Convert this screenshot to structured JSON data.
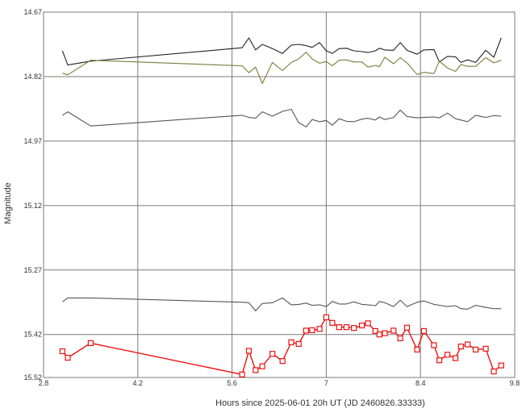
{
  "chart_data": {
    "type": "line",
    "title": "",
    "xlabel": "Hours since 2025-06-01 20h UT (JD 2460826.33333)",
    "ylabel": "Magnitude",
    "xlim": [
      2.8,
      9.8
    ],
    "ylim": [
      14.67,
      15.52
    ],
    "y_inverted": true,
    "x_ticks": [
      "2.8",
      "4.2",
      "5.6",
      "7",
      "8.4",
      "9.8"
    ],
    "y_ticks": [
      "14.67",
      "14.82",
      "14.97",
      "15.12",
      "15.27",
      "15.42",
      "15.52"
    ],
    "grid": true,
    "series": [
      {
        "color": "#222222",
        "marker": "none",
        "x": [
          3.08,
          3.16,
          3.5,
          5.75,
          5.85,
          5.95,
          6.05,
          6.2,
          6.35,
          6.48,
          6.59,
          6.7,
          6.79,
          6.9,
          7.0,
          7.09,
          7.19,
          7.3,
          7.41,
          7.53,
          7.62,
          7.73,
          7.79,
          7.87,
          8.0,
          8.1,
          8.2,
          8.35,
          8.45,
          8.6,
          8.68,
          8.8,
          8.92,
          9.0,
          9.1,
          9.22,
          9.37,
          9.49,
          9.6
        ],
        "y": [
          14.76,
          14.793,
          14.784,
          14.753,
          14.73,
          14.758,
          14.745,
          14.755,
          14.766,
          14.747,
          14.745,
          14.748,
          14.752,
          14.741,
          14.76,
          14.766,
          14.755,
          14.754,
          14.76,
          14.762,
          14.764,
          14.76,
          14.754,
          14.758,
          14.759,
          14.741,
          14.759,
          14.768,
          14.758,
          14.757,
          14.786,
          14.773,
          14.774,
          14.787,
          14.781,
          14.787,
          14.759,
          14.775,
          14.73
        ]
      },
      {
        "color": "#7a7c3a",
        "marker": "none",
        "x": [
          3.08,
          3.16,
          3.5,
          5.75,
          5.85,
          5.95,
          6.05,
          6.2,
          6.35,
          6.48,
          6.59,
          6.7,
          6.79,
          6.9,
          7.0,
          7.09,
          7.19,
          7.3,
          7.41,
          7.53,
          7.62,
          7.73,
          7.79,
          7.87,
          8.0,
          8.1,
          8.2,
          8.35,
          8.45,
          8.6,
          8.68,
          8.8,
          8.92,
          9.0,
          9.1,
          9.22,
          9.37,
          9.49,
          9.6
        ],
        "y": [
          14.812,
          14.816,
          14.782,
          14.795,
          14.811,
          14.798,
          14.836,
          14.787,
          14.806,
          14.787,
          14.779,
          14.763,
          14.779,
          14.789,
          14.785,
          14.795,
          14.782,
          14.781,
          14.786,
          14.786,
          14.798,
          14.794,
          14.797,
          14.775,
          14.79,
          14.776,
          14.788,
          14.815,
          14.81,
          14.813,
          14.784,
          14.8,
          14.808,
          14.792,
          14.796,
          14.796,
          14.776,
          14.788,
          14.782
        ]
      },
      {
        "color": "#555555",
        "marker": "none",
        "x": [
          3.08,
          3.16,
          3.5,
          5.75,
          5.85,
          5.95,
          6.05,
          6.2,
          6.35,
          6.48,
          6.59,
          6.7,
          6.79,
          6.9,
          7.0,
          7.09,
          7.19,
          7.3,
          7.41,
          7.53,
          7.62,
          7.73,
          7.79,
          7.87,
          8.0,
          8.1,
          8.2,
          8.35,
          8.45,
          8.6,
          8.68,
          8.8,
          8.92,
          9.0,
          9.1,
          9.22,
          9.37,
          9.49,
          9.6
        ],
        "y": [
          14.91,
          14.902,
          14.935,
          14.91,
          14.915,
          14.917,
          14.902,
          14.912,
          14.901,
          14.896,
          14.927,
          14.937,
          14.92,
          14.925,
          14.922,
          14.933,
          14.918,
          14.924,
          14.925,
          14.919,
          14.917,
          14.921,
          14.914,
          14.92,
          14.915,
          14.898,
          14.913,
          14.916,
          14.915,
          14.914,
          14.916,
          14.905,
          14.918,
          14.921,
          14.925,
          14.91,
          14.915,
          14.911,
          14.912
        ]
      },
      {
        "color": "#555555",
        "marker": "none",
        "x": [
          3.08,
          3.16,
          3.5,
          5.75,
          5.85,
          5.95,
          6.05,
          6.2,
          6.35,
          6.48,
          6.59,
          6.7,
          6.79,
          6.9,
          7.0,
          7.09,
          7.19,
          7.3,
          7.41,
          7.53,
          7.62,
          7.73,
          7.79,
          7.87,
          8.0,
          8.1,
          8.2,
          8.35,
          8.45,
          8.6,
          8.68,
          8.8,
          8.92,
          9.0,
          9.1,
          9.22,
          9.37,
          9.49,
          9.6
        ],
        "y": [
          15.344,
          15.335,
          15.335,
          15.345,
          15.346,
          15.365,
          15.348,
          15.346,
          15.335,
          15.351,
          15.35,
          15.347,
          15.352,
          15.351,
          15.355,
          15.343,
          15.349,
          15.349,
          15.344,
          15.35,
          15.351,
          15.353,
          15.343,
          15.346,
          15.355,
          15.34,
          15.355,
          15.345,
          15.342,
          15.35,
          15.352,
          15.355,
          15.353,
          15.36,
          15.361,
          15.352,
          15.357,
          15.36,
          15.36
        ]
      },
      {
        "color": "#ee1111",
        "marker": "square",
        "x": [
          3.08,
          3.16,
          3.5,
          5.75,
          5.85,
          5.95,
          6.05,
          6.2,
          6.35,
          6.48,
          6.59,
          6.7,
          6.79,
          6.9,
          7.0,
          7.09,
          7.19,
          7.3,
          7.41,
          7.53,
          7.62,
          7.73,
          7.79,
          7.87,
          8.0,
          8.1,
          8.2,
          8.35,
          8.45,
          8.6,
          8.68,
          8.8,
          8.92,
          9.0,
          9.1,
          9.22,
          9.37,
          9.49,
          9.6
        ],
        "y": [
          15.459,
          15.474,
          15.44,
          15.513,
          15.458,
          15.503,
          15.494,
          15.465,
          15.482,
          15.438,
          15.442,
          15.411,
          15.41,
          15.407,
          15.38,
          15.393,
          15.403,
          15.403,
          15.405,
          15.399,
          15.394,
          15.412,
          15.42,
          15.417,
          15.411,
          15.429,
          15.404,
          15.455,
          15.412,
          15.445,
          15.48,
          15.467,
          15.475,
          15.448,
          15.443,
          15.455,
          15.453,
          15.506,
          15.492
        ]
      }
    ]
  }
}
